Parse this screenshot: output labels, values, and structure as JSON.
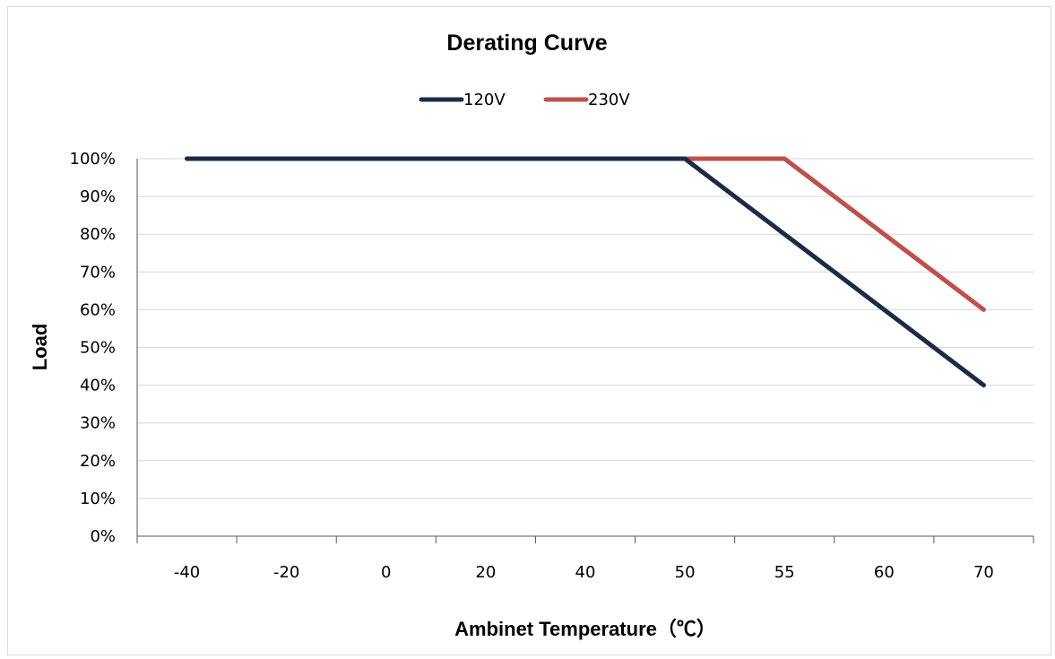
{
  "chart_data": {
    "type": "line",
    "title": "Derating Curve",
    "xlabel": "Ambinet Temperature（℃）",
    "ylabel": "Load",
    "categories": [
      "-40",
      "-20",
      "0",
      "20",
      "40",
      "50",
      "55",
      "60",
      "70"
    ],
    "y_ticks": [
      "0%",
      "10%",
      "20%",
      "30%",
      "40%",
      "50%",
      "60%",
      "70%",
      "80%",
      "90%",
      "100%"
    ],
    "ylim": [
      0,
      100
    ],
    "y_unit": "%",
    "grid": "horizontal",
    "legend_position": "top",
    "series": [
      {
        "name": "120V",
        "color": "#1c2b45",
        "values": [
          100,
          100,
          100,
          100,
          100,
          100,
          80,
          60,
          40
        ]
      },
      {
        "name": "230V",
        "color": "#c0504d",
        "values": [
          100,
          100,
          100,
          100,
          100,
          100,
          100,
          80,
          60
        ]
      }
    ]
  }
}
